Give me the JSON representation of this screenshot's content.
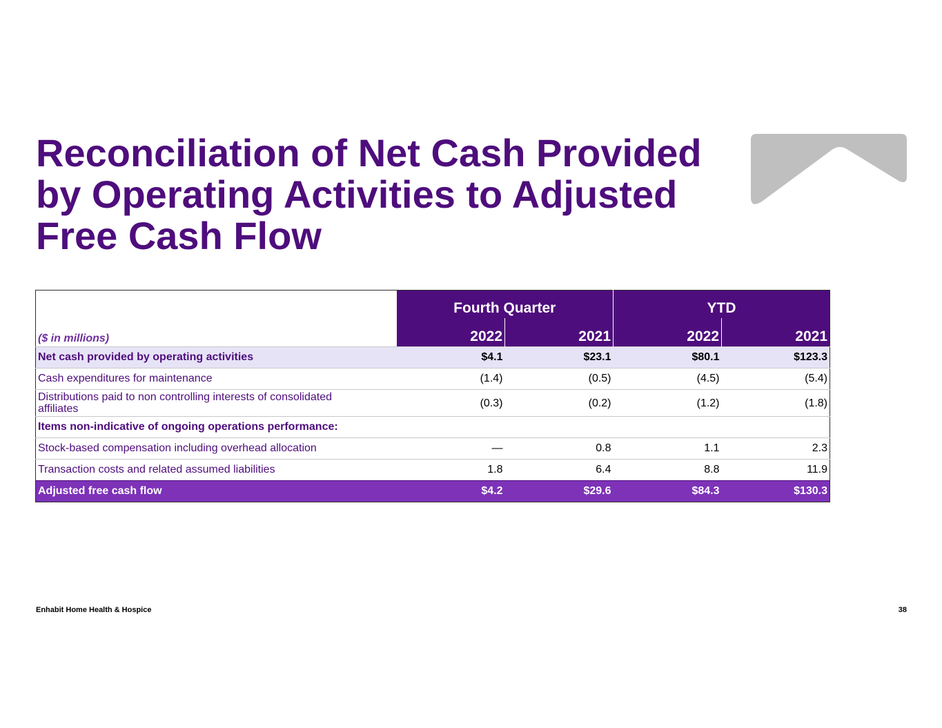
{
  "title": "Reconciliation of Net Cash Provided by Operating Activities to Adjusted Free Cash Flow",
  "logo": {
    "icon": "chevron-logo-icon",
    "color": "#bfbfbf"
  },
  "table": {
    "unit_label": "($ in millions)",
    "group_headers": [
      "Fourth Quarter",
      "YTD"
    ],
    "years": [
      "2022",
      "2021",
      "2022",
      "2021"
    ],
    "rows": [
      {
        "label": "Net cash provided by operating activities",
        "values": [
          "$4.1",
          "$23.1",
          "$80.1",
          "$123.3"
        ]
      },
      {
        "label": "Cash expenditures for maintenance",
        "values": [
          "(1.4)",
          "(0.5)",
          "(4.5)",
          "(5.4)"
        ]
      },
      {
        "label": "Distributions paid to non controlling interests of consolidated affiliates",
        "values": [
          "(0.3)",
          "(0.2)",
          "(1.2)",
          "(1.8)"
        ]
      },
      {
        "label": "Items non-indicative of ongoing operations performance:",
        "values": [
          "",
          "",
          "",
          ""
        ]
      },
      {
        "label": "Stock-based compensation including overhead allocation",
        "values": [
          "—",
          "0.8",
          "1.1",
          "2.3"
        ]
      },
      {
        "label": "Transaction costs and related assumed liabilities",
        "values": [
          "1.8",
          "6.4",
          "8.8",
          "11.9"
        ]
      },
      {
        "label": "Adjusted free cash flow",
        "values": [
          "$4.2",
          "$29.6",
          "$84.3",
          "$130.3"
        ]
      }
    ]
  },
  "footer": {
    "company": "Enhabit Home Health & Hospice",
    "page_number": "38"
  },
  "colors": {
    "primary_purple": "#4e0d7c",
    "accent_purple": "#7d32b8",
    "row_shade": "#e7e3f6"
  }
}
